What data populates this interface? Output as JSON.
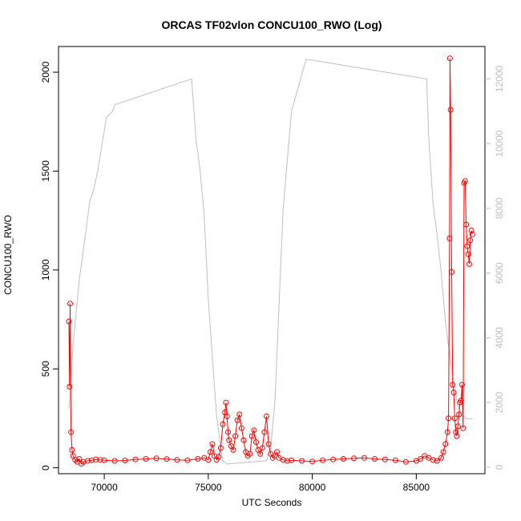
{
  "chart_data": {
    "type": "line",
    "title": "ORCAS TF02vlon CONCU100_RWO (Log)",
    "xlabel": "UTC Seconds",
    "ylabel": "CONCU100_RWO",
    "xlim": [
      67800,
      88300
    ],
    "ylim_left": [
      -30,
      2130
    ],
    "ylim_right": [
      -200,
      13000
    ],
    "x_ticks": [
      70000,
      75000,
      80000,
      85000
    ],
    "y_ticks_left": [
      0,
      500,
      1000,
      1500,
      2000
    ],
    "y_ticks_right": [
      0,
      2000,
      4000,
      6000,
      8000,
      10000,
      12000
    ],
    "colors": {
      "concentration": "#ff0000",
      "altitude": "#bebebe"
    },
    "series": [
      {
        "axis": "left",
        "style": "line+circle-markers",
        "color": "#ff0000",
        "x": [
          68300,
          68330,
          68360,
          68400,
          68450,
          68500,
          68600,
          68700,
          68800,
          68900,
          69000,
          69200,
          69400,
          69600,
          69800,
          70000,
          70500,
          71000,
          71500,
          72000,
          72500,
          73000,
          73500,
          74000,
          74500,
          74800,
          75000,
          75100,
          75200,
          75300,
          75400,
          75500,
          75600,
          75700,
          75800,
          75850,
          75900,
          75950,
          76000,
          76100,
          76200,
          76300,
          76400,
          76500,
          76600,
          76700,
          76800,
          76900,
          77000,
          77100,
          77200,
          77300,
          77400,
          77500,
          77600,
          77700,
          77800,
          77900,
          78000,
          78100,
          78200,
          78300,
          78400,
          78600,
          78800,
          79000,
          79500,
          80000,
          80500,
          81000,
          81500,
          82000,
          82500,
          83000,
          83500,
          84000,
          84500,
          85000,
          85200,
          85400,
          85600,
          85800,
          86000,
          86200,
          86300,
          86400,
          86500,
          86550,
          86600,
          86620,
          86650,
          86700,
          86750,
          86800,
          86850,
          86900,
          86950,
          87000,
          87050,
          87100,
          87150,
          87200,
          87250,
          87300,
          87350,
          87400,
          87450,
          87500,
          87550,
          87600,
          87650,
          87700
        ],
        "values": [
          740,
          410,
          830,
          180,
          90,
          60,
          40,
          30,
          45,
          20,
          30,
          35,
          38,
          42,
          40,
          38,
          35,
          37,
          42,
          45,
          48,
          44,
          40,
          38,
          45,
          50,
          40,
          80,
          120,
          60,
          40,
          55,
          100,
          220,
          280,
          330,
          260,
          180,
          140,
          110,
          90,
          160,
          240,
          270,
          200,
          140,
          80,
          60,
          70,
          160,
          190,
          130,
          90,
          70,
          100,
          180,
          260,
          120,
          70,
          50,
          60,
          80,
          50,
          40,
          35,
          38,
          35,
          32,
          38,
          42,
          45,
          48,
          50,
          45,
          42,
          38,
          30,
          35,
          45,
          60,
          50,
          40,
          35,
          50,
          80,
          120,
          180,
          250,
          1160,
          2070,
          1810,
          990,
          420,
          380,
          250,
          180,
          160,
          210,
          270,
          330,
          340,
          420,
          200,
          1440,
          1450,
          1230,
          1120,
          1080,
          1030,
          1150,
          1200,
          1180
        ]
      },
      {
        "axis": "right",
        "style": "line",
        "color": "#bebebe",
        "x": [
          68300,
          68500,
          68800,
          69100,
          69300,
          69500,
          69700,
          69900,
          70100,
          70400,
          70500,
          74200,
          74400,
          74600,
          74800,
          75000,
          75200,
          75400,
          75600,
          75700,
          75900,
          77800,
          78000,
          78200,
          78400,
          78600,
          79000,
          79700,
          79800,
          85500,
          85600,
          85700,
          85800,
          86000,
          86200,
          86400,
          86600,
          86800,
          87000,
          87200,
          87400,
          87700
        ],
        "values": [
          1800,
          3800,
          5800,
          7200,
          8200,
          8600,
          9200,
          10000,
          10800,
          11000,
          11200,
          12000,
          10200,
          9200,
          7800,
          5200,
          3400,
          1600,
          600,
          200,
          100,
          200,
          600,
          2000,
          5000,
          8000,
          11000,
          12600,
          12600,
          12000,
          10200,
          9200,
          8200,
          7200,
          6000,
          4500,
          3500,
          2600,
          1900,
          1600,
          1500,
          1500
        ]
      }
    ]
  }
}
